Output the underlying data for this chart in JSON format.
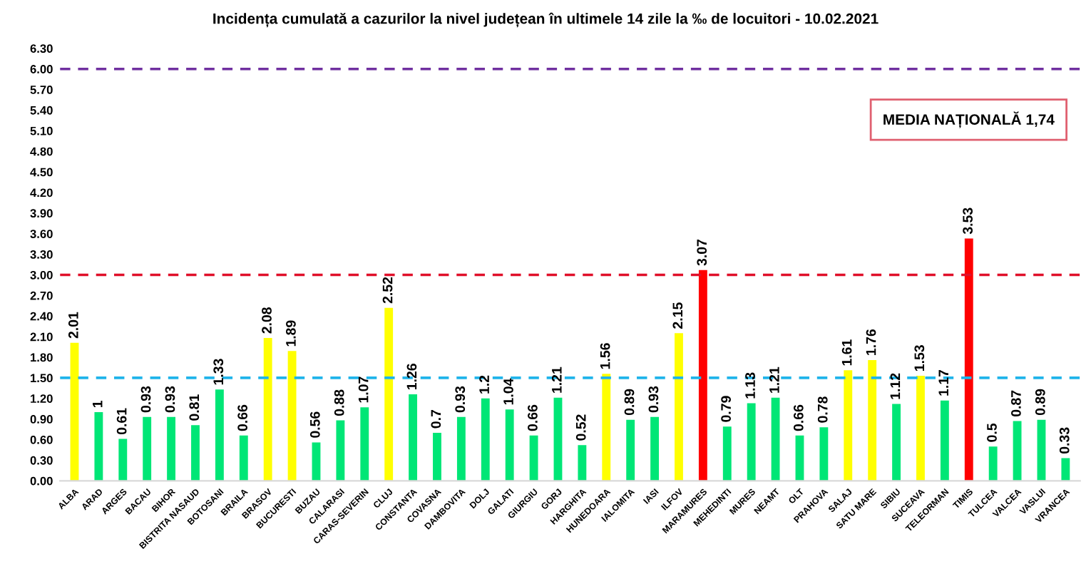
{
  "chart_data": {
    "type": "bar",
    "title": "Incidența cumulată a cazurilor la nivel județean în ultimele 14 zile la ‰ de locuitori - 10.02.2021",
    "categories": [
      "ALBA",
      "ARAD",
      "ARGES",
      "BACAU",
      "BIHOR",
      "BISTRITA NASAUD",
      "BOTOSANI",
      "BRAILA",
      "BRASOV",
      "BUCURESTI",
      "BUZAU",
      "CALARASI",
      "CARAS-SEVERIN",
      "CLUJ",
      "CONSTANTA",
      "COVASNA",
      "DAMBOVITA",
      "DOLJ",
      "GALATI",
      "GIURGIU",
      "GORJ",
      "HARGHITA",
      "HUNEDOARA",
      "IALOMITA",
      "IASI",
      "ILFOV",
      "MARAMURES",
      "MEHEDINTI",
      "MURES",
      "NEAMT",
      "OLT",
      "PRAHOVA",
      "SALAJ",
      "SATU MARE",
      "SIBIU",
      "SUCEAVA",
      "TELEORMAN",
      "TIMIS",
      "TULCEA",
      "VALCEA",
      "VASLUI",
      "VRANCEA"
    ],
    "values": [
      2.01,
      1,
      0.61,
      0.93,
      0.93,
      0.81,
      1.33,
      0.66,
      2.08,
      1.89,
      0.56,
      0.88,
      1.07,
      2.52,
      1.26,
      0.7,
      0.93,
      1.2,
      1.04,
      0.66,
      1.21,
      0.52,
      1.56,
      0.89,
      0.93,
      2.15,
      3.07,
      0.79,
      1.13,
      1.21,
      0.66,
      0.78,
      1.61,
      1.76,
      1.12,
      1.53,
      1.17,
      3.53,
      0.5,
      0.87,
      0.89,
      0.33
    ],
    "colors": [
      "#ffff00",
      "#00e676",
      "#00e676",
      "#00e676",
      "#00e676",
      "#00e676",
      "#00e676",
      "#00e676",
      "#ffff00",
      "#ffff00",
      "#00e676",
      "#00e676",
      "#00e676",
      "#ffff00",
      "#00e676",
      "#00e676",
      "#00e676",
      "#00e676",
      "#00e676",
      "#00e676",
      "#00e676",
      "#00e676",
      "#ffff00",
      "#00e676",
      "#00e676",
      "#ffff00",
      "#ff0000",
      "#00e676",
      "#00e676",
      "#00e676",
      "#00e676",
      "#00e676",
      "#ffff00",
      "#ffff00",
      "#00e676",
      "#ffff00",
      "#00e676",
      "#ff0000",
      "#00e676",
      "#00e676",
      "#00e676",
      "#00e676"
    ],
    "ylim": [
      0,
      6.3
    ],
    "yticks": [
      {
        "value": 0,
        "label": "0.00"
      },
      {
        "value": 0.3,
        "label": "0.30"
      },
      {
        "value": 0.6,
        "label": "0.60"
      },
      {
        "value": 0.9,
        "label": "0.90"
      },
      {
        "value": 1.2,
        "label": "1.20"
      },
      {
        "value": 1.5,
        "label": "1.50"
      },
      {
        "value": 1.8,
        "label": "1.80"
      },
      {
        "value": 2.1,
        "label": "2.10"
      },
      {
        "value": 2.4,
        "label": "2.40"
      },
      {
        "value": 2.7,
        "label": "2.70"
      },
      {
        "value": 3.0,
        "label": "3.00"
      },
      {
        "value": 3.3,
        "label": "3.30"
      },
      {
        "value": 3.6,
        "label": "3.60"
      },
      {
        "value": 3.9,
        "label": "3.90"
      },
      {
        "value": 4.2,
        "label": "4.20"
      },
      {
        "value": 4.5,
        "label": "4.50"
      },
      {
        "value": 4.8,
        "label": "4.80"
      },
      {
        "value": 5.1,
        "label": "5.10"
      },
      {
        "value": 5.4,
        "label": "5.40"
      },
      {
        "value": 5.7,
        "label": "5.70"
      },
      {
        "value": 6.0,
        "label": "6.00"
      },
      {
        "value": 6.3,
        "label": "6.30"
      }
    ],
    "ref_lines": [
      {
        "axis": "y",
        "value": 6.0,
        "color": "#7030a0",
        "line_style": "dashed"
      },
      {
        "axis": "y",
        "value": 3.0,
        "color": "#e0102a",
        "line_style": "dashed"
      },
      {
        "axis": "y",
        "value": 1.5,
        "color": "#1fb4ea",
        "line_style": "dashed"
      }
    ],
    "annotations": [
      "MEDIA NAȚIONALĂ 1,74"
    ],
    "data_labels": true,
    "grid": false,
    "legend": false
  }
}
